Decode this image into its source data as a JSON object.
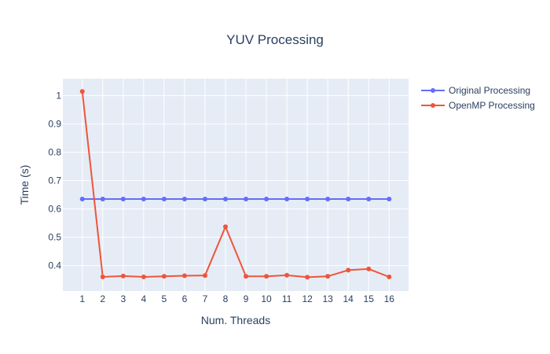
{
  "chart_data": {
    "type": "line",
    "title": "YUV Processing",
    "xlabel": "Num. Threads",
    "ylabel": "Time (s)",
    "x": [
      1,
      2,
      3,
      4,
      5,
      6,
      7,
      8,
      9,
      10,
      11,
      12,
      13,
      14,
      15,
      16
    ],
    "x_ticks": [
      "1",
      "2",
      "3",
      "4",
      "5",
      "6",
      "7",
      "8",
      "9",
      "10",
      "11",
      "12",
      "13",
      "14",
      "15",
      "16"
    ],
    "y_ticks": [
      "0.4",
      "0.5",
      "0.6",
      "0.7",
      "0.8",
      "0.9",
      "1"
    ],
    "y_tick_values": [
      0.4,
      0.5,
      0.6,
      0.7,
      0.8,
      0.9,
      1.0
    ],
    "xlim": [
      0.05,
      16.95
    ],
    "ylim": [
      0.31,
      1.06
    ],
    "grid": true,
    "legend": "top-right",
    "series": [
      {
        "name": "Original Processing",
        "color": "#636efa",
        "values": [
          0.635,
          0.635,
          0.635,
          0.635,
          0.635,
          0.635,
          0.635,
          0.635,
          0.635,
          0.635,
          0.635,
          0.635,
          0.635,
          0.635,
          0.635,
          0.635
        ]
      },
      {
        "name": "OpenMP Processing",
        "color": "#ef553b",
        "values": [
          1.015,
          0.36,
          0.363,
          0.36,
          0.362,
          0.364,
          0.365,
          0.537,
          0.362,
          0.362,
          0.366,
          0.359,
          0.362,
          0.384,
          0.388,
          0.36
        ]
      }
    ],
    "colors": {
      "plot_background": "#e5ecf6",
      "grid": "#ffffff",
      "text": "#2a3f5f"
    }
  }
}
